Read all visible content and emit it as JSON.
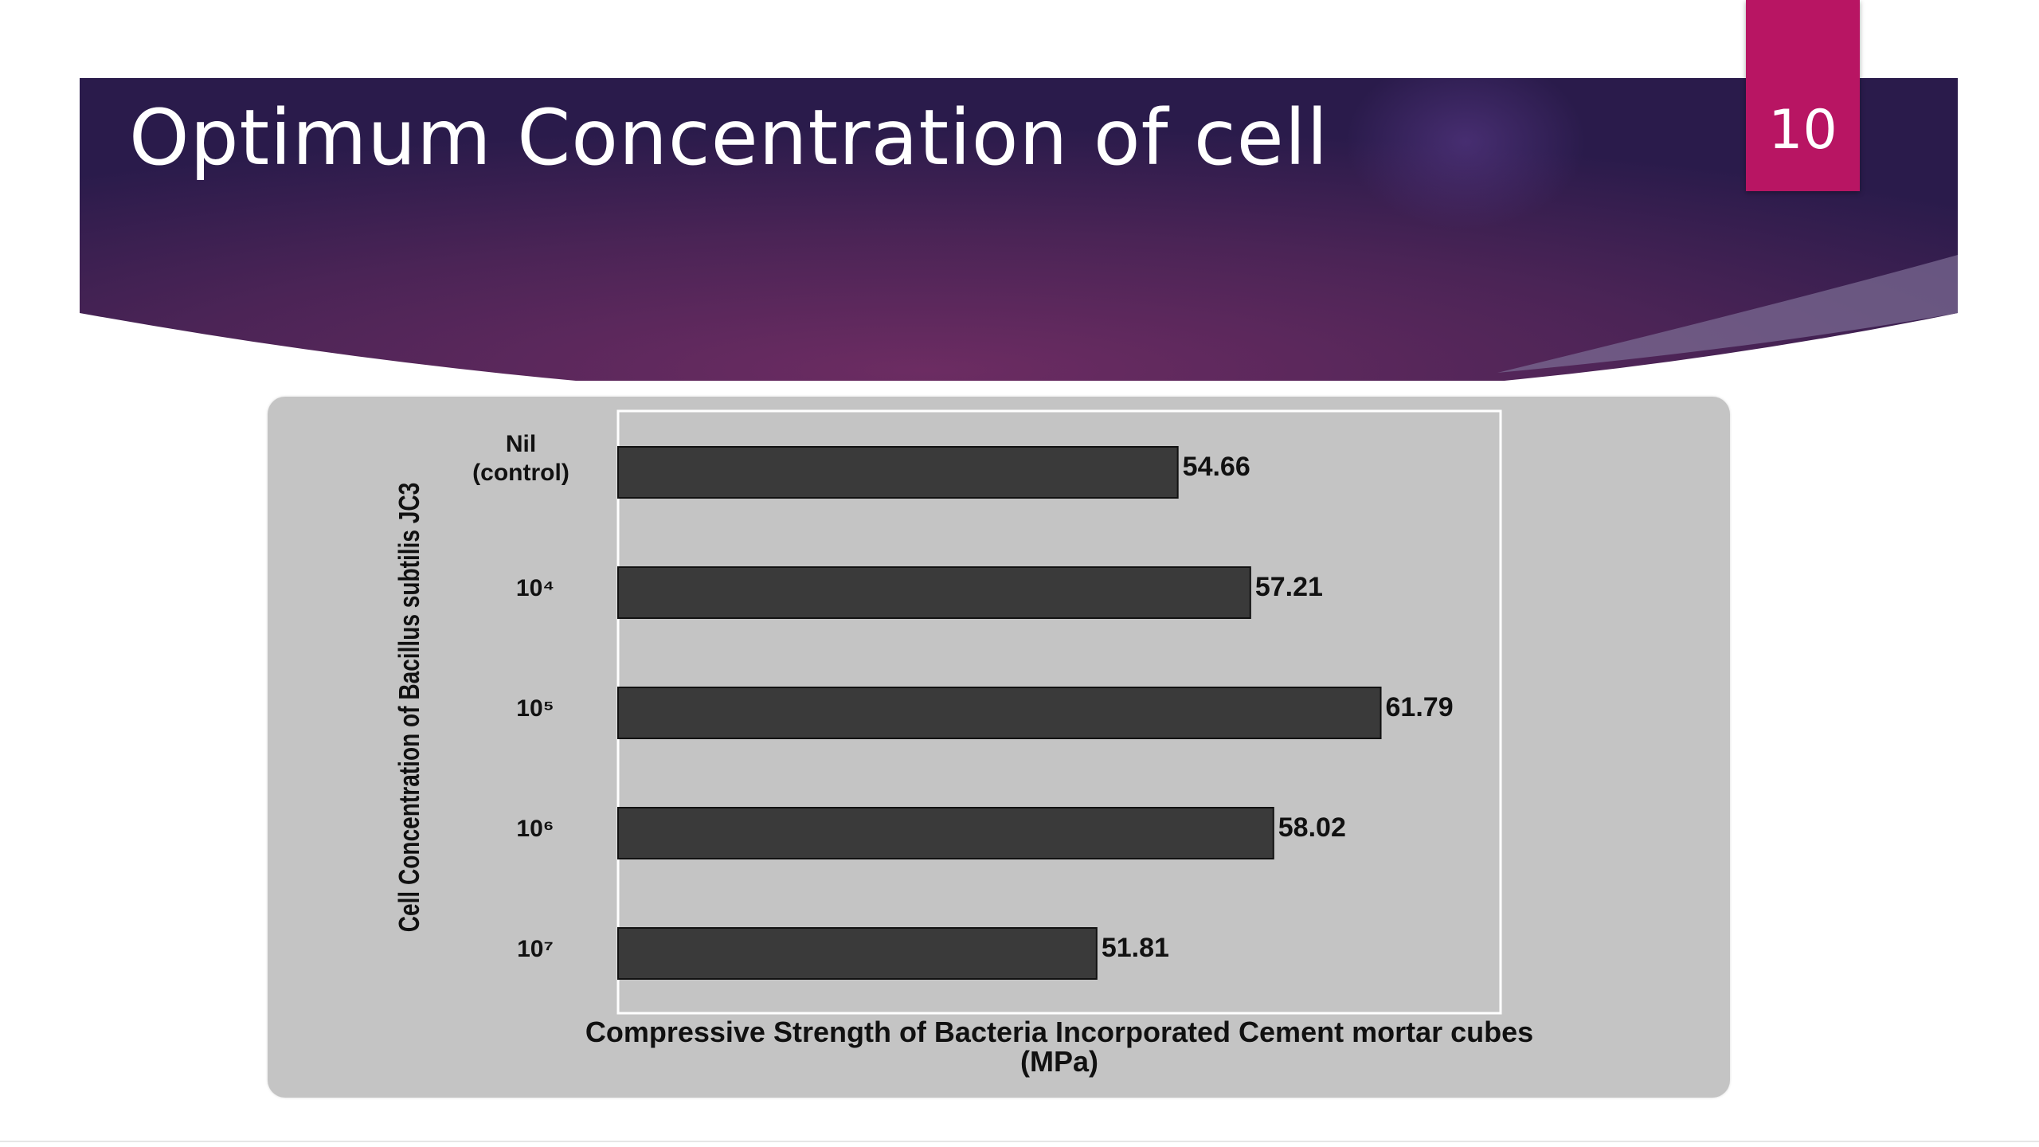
{
  "slide": {
    "title": "Optimum Concentration of cell",
    "number": "10",
    "colors": {
      "header_dark": "#2a1b4b",
      "header_light": "#6c2c62",
      "number_tab": "#b81563",
      "chart_panel": "#c4c4c4",
      "bar": "#3a3a3a"
    }
  },
  "chart_data": {
    "type": "bar",
    "orientation": "horizontal",
    "categories": [
      "Nil\n(control)",
      "10⁴",
      "10⁵",
      "10⁶",
      "10⁷"
    ],
    "values": [
      54.66,
      57.21,
      61.79,
      58.02,
      51.81
    ],
    "value_labels": [
      "54.66",
      "57.21",
      "61.79",
      "58.02",
      "51.81"
    ],
    "xlabel_line1": "Compressive  Strength of Bacteria Incorporated  Cement mortar cubes",
    "xlabel_line2": "(MPa)",
    "ylabel": "Cell Concentration of Bacillus subtilis JC3",
    "xlim": [
      35,
      66
    ],
    "grid": false,
    "legend": "none"
  }
}
